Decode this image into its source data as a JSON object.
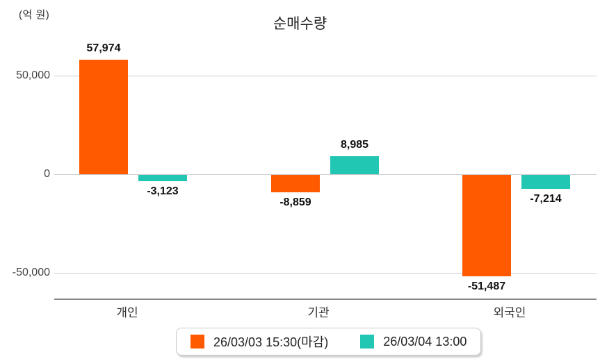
{
  "chart": {
    "unit_label": "(억 원)",
    "title": "순매수량"
  },
  "chart_data": {
    "type": "bar",
    "title": "순매수량",
    "xlabel": "",
    "ylabel": "(억 원)",
    "categories": [
      "개인",
      "기관",
      "외국인"
    ],
    "series": [
      {
        "name": "26/03/03 15:30(마감)",
        "color": "#FF5A00",
        "values": [
          57974,
          -8859,
          -51487
        ],
        "labels": [
          "57,974",
          "-8,859",
          "-51,487"
        ]
      },
      {
        "name": "26/03/04 13:00",
        "color": "#22C7B4",
        "values": [
          -3123,
          8985,
          -7214
        ],
        "labels": [
          "-3,123",
          "8,985",
          "-7,214"
        ]
      }
    ],
    "yticks": [
      {
        "value": 50000,
        "label": "50,000"
      },
      {
        "value": 0,
        "label": "0"
      },
      {
        "value": -50000,
        "label": "-50,000"
      }
    ],
    "ylim": [
      -64000,
      68000
    ],
    "grid": true,
    "legend_position": "bottom"
  },
  "legend": {
    "items": [
      {
        "label": "26/03/03 15:30(마감)",
        "color": "#FF5A00"
      },
      {
        "label": "26/03/04 13:00",
        "color": "#22C7B4"
      }
    ]
  },
  "colors": {
    "series1": "#FF5A00",
    "series2": "#22C7B4",
    "grid": "#CCCCCC",
    "axis": "#888888",
    "value_text": "#111111",
    "tick_text": "#444444"
  }
}
